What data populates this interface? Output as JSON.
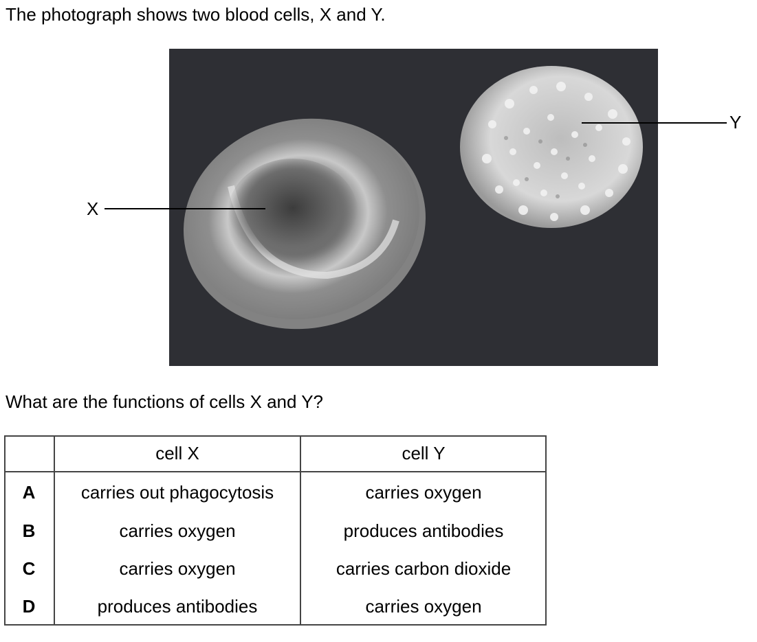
{
  "intro_text": "The photograph shows two blood cells, X and Y.",
  "photo": {
    "label_x": "X",
    "label_y": "Y"
  },
  "question_text": "What are the functions of cells X and Y?",
  "table": {
    "headers": [
      "",
      "cell X",
      "cell Y"
    ],
    "rows": [
      {
        "key": "A",
        "cell_x": "carries out phagocytosis",
        "cell_y": "carries oxygen"
      },
      {
        "key": "B",
        "cell_x": "carries oxygen",
        "cell_y": "produces antibodies"
      },
      {
        "key": "C",
        "cell_x": "carries oxygen",
        "cell_y": "carries carbon dioxide"
      },
      {
        "key": "D",
        "cell_x": "produces antibodies",
        "cell_y": "carries oxygen"
      }
    ]
  }
}
